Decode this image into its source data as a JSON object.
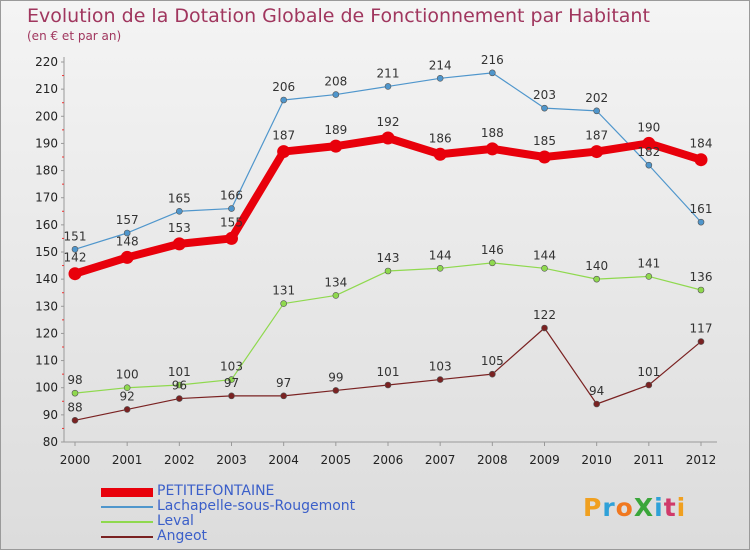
{
  "chart_data": {
    "type": "line",
    "title": "Evolution de la Dotation Globale de Fonctionnement par Habitant",
    "subtitle": "(en € et par an)",
    "xlabel": "",
    "ylabel": "",
    "categories": [
      "2000",
      "2001",
      "2002",
      "2003",
      "2004",
      "2005",
      "2006",
      "2007",
      "2008",
      "2009",
      "2010",
      "2011",
      "2012"
    ],
    "ylim": [
      80,
      220
    ],
    "yticks": [
      80,
      90,
      100,
      110,
      120,
      130,
      140,
      150,
      160,
      170,
      180,
      190,
      200,
      210,
      220
    ],
    "grid": false,
    "legend_position": "bottom-left",
    "series": [
      {
        "name": "PETITEFONTAINE",
        "color": "#e8000b",
        "emphasis": true,
        "values": [
          142,
          148,
          153,
          155,
          187,
          189,
          192,
          186,
          188,
          185,
          187,
          190,
          184
        ],
        "labels": [
          "142",
          "148",
          "153",
          "155",
          "187",
          "189",
          "192",
          "186",
          "188",
          "185",
          "187",
          "190",
          "184"
        ]
      },
      {
        "name": "Lachapelle-sous-Rougemont",
        "color": "#4f96cc",
        "emphasis": false,
        "values": [
          151,
          157,
          165,
          166,
          206,
          208,
          211,
          214,
          216,
          203,
          202,
          182,
          161
        ],
        "labels": [
          "151",
          "157",
          "165",
          "166",
          "206",
          "208",
          "211",
          "214",
          "216",
          "203",
          "202",
          "182",
          "161"
        ]
      },
      {
        "name": "Leval",
        "color": "#8fd94e",
        "emphasis": false,
        "values": [
          98,
          100,
          101,
          103,
          131,
          134,
          143,
          144,
          146,
          144,
          140,
          141,
          136
        ],
        "labels": [
          "98",
          "100",
          "101",
          "103",
          "131",
          "134",
          "143",
          "144",
          "146",
          "144",
          "140",
          "141",
          "136"
        ]
      },
      {
        "name": "Angeot",
        "color": "#7a2222",
        "emphasis": false,
        "values": [
          88,
          92,
          96,
          97,
          97,
          99,
          101,
          103,
          105,
          122,
          94,
          101,
          117
        ],
        "labels": [
          "88",
          "92",
          "96",
          "97",
          "97",
          "99",
          "101",
          "103",
          "105",
          "122",
          "94",
          "101",
          "117"
        ]
      }
    ]
  },
  "logo": {
    "text": "ProXiti"
  }
}
